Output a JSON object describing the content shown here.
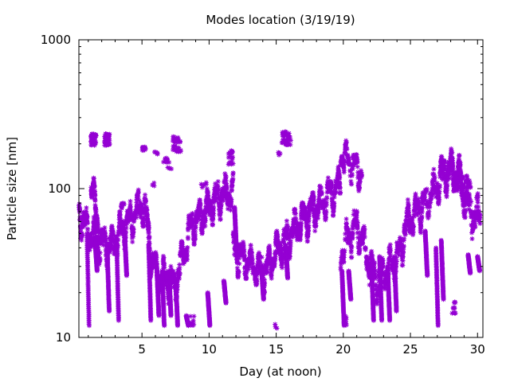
{
  "chart_data": {
    "type": "scatter",
    "title": "Modes location (3/19/19)",
    "xlabel": "Day (at noon)",
    "ylabel": "Particle size [nm]",
    "xlim": [
      0.3,
      30.4
    ],
    "ylim": [
      10,
      1000
    ],
    "yscale": "log",
    "x_ticks": [
      5,
      10,
      15,
      20,
      25,
      30
    ],
    "y_ticks": [
      10,
      100,
      1000
    ],
    "grid": false,
    "legend": "none",
    "marker_color": "#9400d3",
    "marker_symbol": "asterisk",
    "mode_tracks": [
      {
        "pts": [
          [
            0.3,
            70
          ],
          [
            0.6,
            60
          ],
          [
            1.0,
            52
          ],
          [
            1.4,
            48
          ],
          [
            1.8,
            42
          ],
          [
            2.2,
            44
          ],
          [
            2.6,
            40
          ],
          [
            3.0,
            45
          ],
          [
            3.4,
            52
          ],
          [
            3.8,
            58
          ],
          [
            4.2,
            62
          ],
          [
            4.6,
            72
          ],
          [
            5.0,
            78
          ],
          [
            5.3,
            70
          ],
          [
            5.6,
            40
          ],
          [
            5.9,
            30
          ],
          [
            6.2,
            26
          ],
          [
            6.6,
            25
          ],
          [
            7.0,
            24
          ],
          [
            7.4,
            22
          ],
          [
            7.8,
            30
          ],
          [
            8.2,
            40
          ],
          [
            8.6,
            55
          ],
          [
            9.0,
            62
          ],
          [
            9.4,
            65
          ],
          [
            9.8,
            72
          ],
          [
            10.2,
            80
          ],
          [
            10.6,
            88
          ],
          [
            11.0,
            92
          ],
          [
            11.4,
            95
          ],
          [
            11.8,
            97
          ]
        ],
        "spread": 0.1,
        "n": 1500
      },
      {
        "pts": [
          [
            11.8,
            40
          ],
          [
            12.2,
            36
          ],
          [
            12.6,
            34
          ],
          [
            13.0,
            33
          ],
          [
            13.4,
            30
          ],
          [
            13.8,
            28
          ],
          [
            14.2,
            28
          ],
          [
            14.6,
            33
          ],
          [
            15.0,
            38
          ],
          [
            15.4,
            42
          ],
          [
            15.8,
            46
          ],
          [
            16.2,
            52
          ],
          [
            16.6,
            58
          ],
          [
            17.0,
            62
          ],
          [
            17.4,
            66
          ],
          [
            17.8,
            72
          ],
          [
            18.2,
            78
          ],
          [
            18.6,
            86
          ],
          [
            19.0,
            92
          ],
          [
            19.4,
            100
          ],
          [
            19.8,
            108
          ]
        ],
        "spread": 0.08,
        "n": 1000
      },
      {
        "pts": [
          [
            19.8,
            38
          ],
          [
            20.2,
            44
          ],
          [
            20.6,
            52
          ],
          [
            21.0,
            55
          ],
          [
            21.4,
            45
          ],
          [
            21.8,
            35
          ],
          [
            22.2,
            28
          ],
          [
            22.6,
            24
          ],
          [
            23.0,
            27
          ],
          [
            23.4,
            30
          ],
          [
            23.8,
            32
          ],
          [
            24.2,
            37
          ],
          [
            24.6,
            55
          ],
          [
            25.0,
            62
          ],
          [
            25.4,
            70
          ],
          [
            25.8,
            78
          ],
          [
            26.2,
            82
          ],
          [
            26.6,
            95
          ],
          [
            27.0,
            108
          ],
          [
            27.4,
            118
          ],
          [
            27.8,
            130
          ],
          [
            28.2,
            125
          ],
          [
            28.6,
            110
          ],
          [
            29.0,
            90
          ],
          [
            29.4,
            72
          ],
          [
            29.8,
            62
          ],
          [
            30.2,
            75
          ]
        ],
        "spread": 0.1,
        "n": 1100
      },
      {
        "pts": [
          [
            19.8,
            180
          ],
          [
            20.2,
            160
          ],
          [
            20.6,
            145
          ],
          [
            21.0,
            140
          ],
          [
            21.4,
            128
          ]
        ],
        "spread": 0.06,
        "n": 160
      },
      {
        "pts": [
          [
            27.2,
            125
          ],
          [
            27.6,
            140
          ],
          [
            28.0,
            142
          ],
          [
            28.4,
            135
          ],
          [
            28.8,
            120
          ],
          [
            29.2,
            100
          ],
          [
            29.6,
            88
          ]
        ],
        "spread": 0.05,
        "n": 180
      },
      {
        "pts": [
          [
            1.2,
            115
          ],
          [
            1.4,
            88
          ],
          [
            1.6,
            65
          ],
          [
            1.8,
            55
          ]
        ],
        "spread": 0.06,
        "n": 150
      },
      {
        "pts": [
          [
            16.6,
            62
          ],
          [
            17.0,
            64
          ],
          [
            17.4,
            70
          ],
          [
            17.8,
            76
          ],
          [
            18.2,
            84
          ]
        ],
        "spread": 0.07,
        "n": 150
      }
    ],
    "drops": [
      {
        "x": 0.9,
        "from": 50,
        "to": 12
      },
      {
        "x": 1.5,
        "from": 45,
        "to": 28
      },
      {
        "x": 2.4,
        "from": 42,
        "to": 15
      },
      {
        "x": 3.1,
        "from": 48,
        "to": 13
      },
      {
        "x": 3.7,
        "from": 52,
        "to": 26
      },
      {
        "x": 5.5,
        "from": 42,
        "to": 13
      },
      {
        "x": 6.1,
        "from": 30,
        "to": 14
      },
      {
        "x": 6.5,
        "from": 28,
        "to": 12
      },
      {
        "x": 7.0,
        "from": 28,
        "to": 14
      },
      {
        "x": 7.5,
        "from": 25,
        "to": 12
      },
      {
        "x": 8.3,
        "from": 14,
        "to": 12
      },
      {
        "x": 9.9,
        "from": 20,
        "to": 12
      },
      {
        "x": 11.1,
        "from": 24,
        "to": 17
      },
      {
        "x": 11.9,
        "from": 75,
        "to": 35
      },
      {
        "x": 13.9,
        "from": 30,
        "to": 18
      },
      {
        "x": 15.7,
        "from": 42,
        "to": 25
      },
      {
        "x": 19.9,
        "from": 28,
        "to": 12
      },
      {
        "x": 20.4,
        "from": 28,
        "to": 18
      },
      {
        "x": 22.1,
        "from": 30,
        "to": 13
      },
      {
        "x": 22.7,
        "from": 35,
        "to": 13
      },
      {
        "x": 23.3,
        "from": 30,
        "to": 13
      },
      {
        "x": 23.8,
        "from": 35,
        "to": 15
      },
      {
        "x": 26.1,
        "from": 52,
        "to": 26
      },
      {
        "x": 26.9,
        "from": 40,
        "to": 12
      },
      {
        "x": 27.3,
        "from": 45,
        "to": 18
      },
      {
        "x": 29.3,
        "from": 36,
        "to": 27
      },
      {
        "x": 30.0,
        "from": 35,
        "to": 28
      }
    ],
    "clusters": [
      {
        "x": [
          1.2,
          1.6
        ],
        "y": [
          195,
          235
        ],
        "n": 45
      },
      {
        "x": [
          2.2,
          2.6
        ],
        "y": [
          195,
          235
        ],
        "n": 45
      },
      {
        "x": [
          5.0,
          5.3
        ],
        "y": [
          180,
          192
        ],
        "n": 14
      },
      {
        "x": [
          5.9,
          6.2
        ],
        "y": [
          168,
          178
        ],
        "n": 6
      },
      {
        "x": [
          6.6,
          7.1
        ],
        "y": [
          150,
          162
        ],
        "n": 12
      },
      {
        "x": [
          6.9,
          7.2
        ],
        "y": [
          132,
          140
        ],
        "n": 4
      },
      {
        "x": [
          7.3,
          7.9
        ],
        "y": [
          175,
          225
        ],
        "n": 40
      },
      {
        "x": [
          11.4,
          11.8
        ],
        "y": [
          145,
          182
        ],
        "n": 22
      },
      {
        "x": [
          15.0,
          15.3
        ],
        "y": [
          165,
          175
        ],
        "n": 4
      },
      {
        "x": [
          15.4,
          16.1
        ],
        "y": [
          195,
          245
        ],
        "n": 38
      },
      {
        "x": [
          14.8,
          15.1
        ],
        "y": [
          11.5,
          12.5
        ],
        "n": 3
      },
      {
        "x": [
          8.6,
          8.9
        ],
        "y": [
          12,
          14
        ],
        "n": 10
      },
      {
        "x": [
          20.0,
          20.3
        ],
        "y": [
          12,
          14
        ],
        "n": 8
      },
      {
        "x": [
          28.1,
          28.4
        ],
        "y": [
          14,
          18
        ],
        "n": 12
      },
      {
        "x": [
          3.4,
          3.7
        ],
        "y": [
          72,
          80
        ],
        "n": 10
      },
      {
        "x": [
          5.7,
          6.1
        ],
        "y": [
          100,
          110
        ],
        "n": 4
      },
      {
        "x": [
          9.4,
          9.8
        ],
        "y": [
          100,
          110
        ],
        "n": 6
      }
    ]
  }
}
